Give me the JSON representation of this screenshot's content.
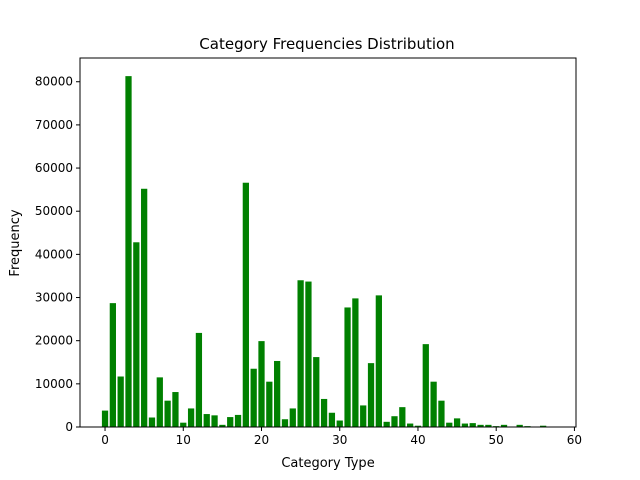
{
  "chart_data": {
    "type": "bar",
    "title": "Category Frequencies Distribution",
    "xlabel": "Category Type",
    "ylabel": "Frequency",
    "xlim": [
      -3.2,
      60.2
    ],
    "ylim": [
      0,
      85500
    ],
    "xticks": [
      0,
      10,
      20,
      30,
      40,
      50,
      60
    ],
    "yticks": [
      0,
      10000,
      20000,
      30000,
      40000,
      50000,
      60000,
      70000,
      80000
    ],
    "grid": false,
    "legend": "none",
    "bar_color": "#008000",
    "x": [
      0,
      1,
      2,
      3,
      4,
      5,
      6,
      7,
      8,
      9,
      10,
      11,
      12,
      13,
      14,
      15,
      16,
      17,
      18,
      19,
      20,
      21,
      22,
      23,
      24,
      25,
      26,
      27,
      28,
      29,
      30,
      31,
      32,
      33,
      34,
      35,
      36,
      37,
      38,
      39,
      40,
      41,
      42,
      43,
      44,
      45,
      46,
      47,
      48,
      49,
      50,
      51,
      52,
      53,
      54,
      55,
      56
    ],
    "values": [
      3800,
      28700,
      11700,
      81300,
      42800,
      55200,
      2200,
      11500,
      6100,
      8100,
      1000,
      4300,
      21800,
      3000,
      2700,
      500,
      2300,
      2800,
      56600,
      13500,
      19900,
      10500,
      15300,
      1800,
      4300,
      34000,
      33700,
      16200,
      6500,
      3300,
      1500,
      27700,
      29800,
      5000,
      14800,
      30500,
      1200,
      2500,
      4600,
      800,
      300,
      19200,
      10500,
      6100,
      1000,
      2000,
      800,
      900,
      500,
      500,
      200,
      500,
      0,
      500,
      200,
      0,
      300
    ]
  }
}
